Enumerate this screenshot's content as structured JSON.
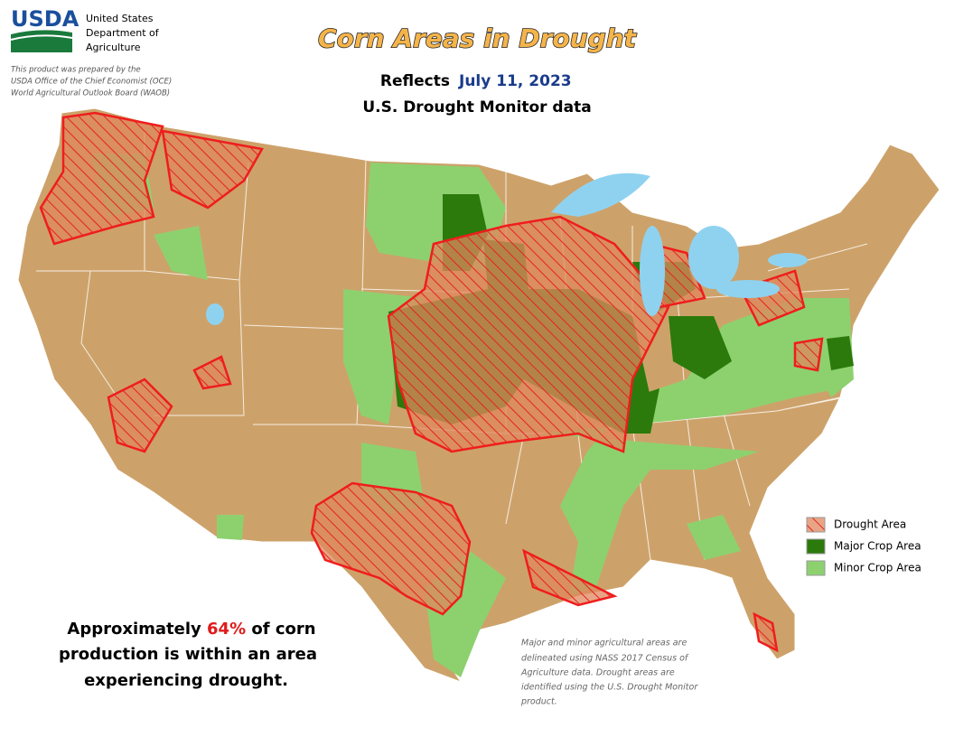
{
  "header": {
    "agency": "USDA",
    "org_lines": [
      "United States",
      "Department of",
      "Agriculture"
    ],
    "note_lines": [
      "This product was prepared by the",
      "USDA Office of the Chief Economist (OCE)",
      "World Agricultural Outlook Board (WAOB)"
    ]
  },
  "title": "Corn Areas in Drought",
  "subtitle": {
    "reflects": "Reflects",
    "date": "July 11, 2023",
    "source": "U.S. Drought Monitor data"
  },
  "legend": {
    "items": [
      "Drought Area",
      "Major Crop Area",
      "Minor Crop Area"
    ]
  },
  "summary": {
    "lead": "Approximately ",
    "highlight": "64%",
    "tail": " of corn",
    "lines": [
      "production is within an area",
      "experiencing drought."
    ]
  },
  "footnote": {
    "lines": [
      "Major and minor agricultural areas are",
      "delineated using NASS 2017 Census of",
      "Agriculture data.  Drought areas are",
      "identified using the U.S. Drought Monitor",
      "product."
    ]
  }
}
